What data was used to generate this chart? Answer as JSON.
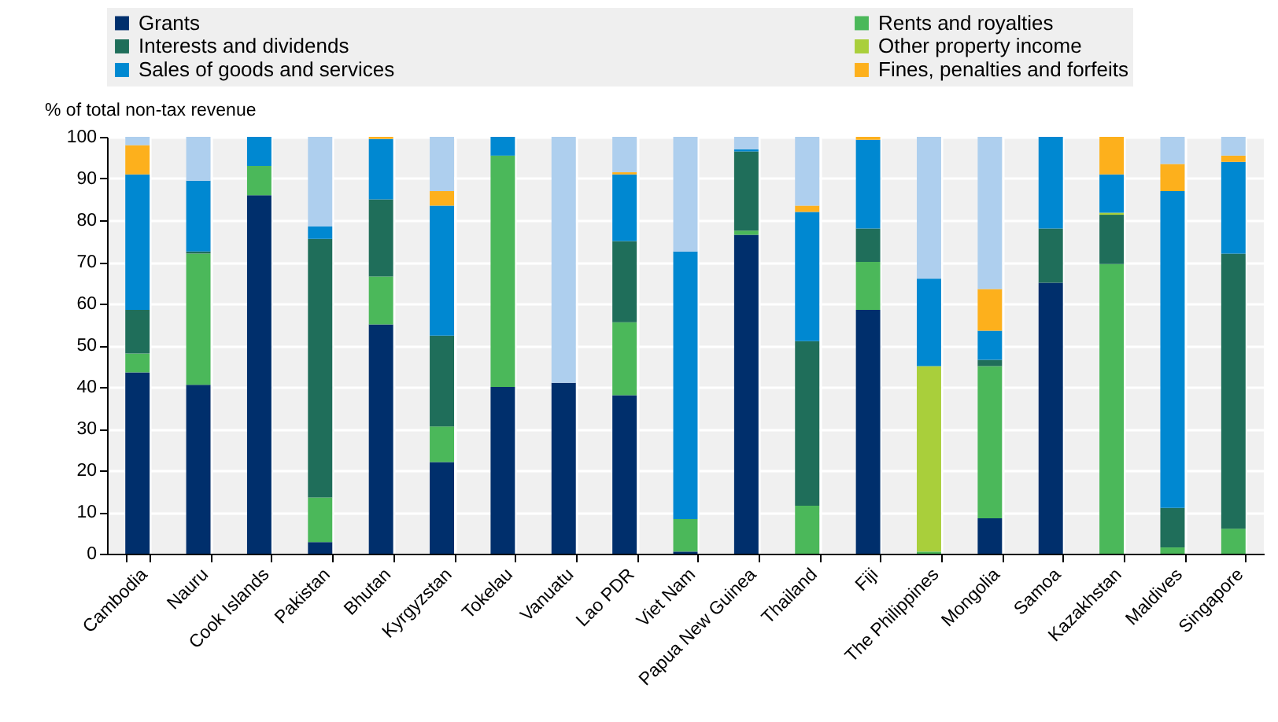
{
  "chart_data": {
    "type": "bar",
    "stacked": true,
    "ylabel": "% of total non-tax revenue",
    "categories": [
      "Cambodia",
      "Nauru",
      "Cook Islands",
      "Pakistan",
      "Bhutan",
      "Kyrgyzstan",
      "Tokelau",
      "Vanuatu",
      "Lao PDR",
      "Viet Nam",
      "Papua New Guinea",
      "Thailand",
      "Fiji",
      "The Philippines",
      "Mongolia",
      "Samoa",
      "Kazakhstan",
      "Maldives",
      "Singapore"
    ],
    "series": [
      {
        "name": "Grants",
        "color": "#002f6c",
        "values": [
          43.5,
          40.5,
          86,
          2.8,
          55,
          22,
          40,
          41,
          38,
          0.5,
          76.5,
          null,
          58.5,
          null,
          8.5,
          65,
          null,
          null,
          null
        ]
      },
      {
        "name": "Rents and royalties",
        "color": "#4bb85a",
        "values": [
          4.5,
          31.5,
          7,
          10.7,
          11.5,
          8.5,
          55.5,
          null,
          17.5,
          7.8,
          1,
          11.5,
          11.5,
          0.5,
          36.5,
          null,
          69.5,
          1.5,
          6
        ]
      },
      {
        "name": "Interests and dividends",
        "color": "#1f6e5a",
        "values": [
          10.5,
          0.5,
          null,
          62,
          18.5,
          21.8,
          null,
          null,
          19.5,
          null,
          19,
          39.5,
          8,
          null,
          1.5,
          13,
          11.8,
          9.5,
          66
        ]
      },
      {
        "name": "Other property income",
        "color": "#a9cf3b",
        "values": [
          null,
          null,
          null,
          null,
          null,
          null,
          null,
          null,
          null,
          null,
          null,
          null,
          null,
          44.5,
          null,
          null,
          0.5,
          null,
          null
        ]
      },
      {
        "name": "Sales of goods and services",
        "color": "#0088d1",
        "values": [
          32.5,
          17,
          7,
          3,
          14.5,
          31.2,
          4.5,
          null,
          16,
          64.2,
          0.5,
          31,
          21.3,
          21,
          7,
          22,
          9.2,
          76,
          22
        ]
      },
      {
        "name": "Fines, penalties and forfeits",
        "color": "#fdb01c",
        "values": [
          7,
          null,
          null,
          null,
          0.5,
          3.5,
          null,
          null,
          0.5,
          null,
          null,
          1.5,
          0.7,
          null,
          10,
          null,
          9,
          6.5,
          1.5
        ]
      },
      {
        "color": "#aecfee",
        "values": [
          2,
          10.5,
          null,
          21.5,
          null,
          13,
          null,
          59,
          8.5,
          27.5,
          3,
          16.5,
          null,
          34,
          36.5,
          null,
          null,
          6.5,
          4.5
        ]
      }
    ],
    "ylim": [
      0,
      100
    ],
    "yticks": [
      0,
      10,
      20,
      30,
      40,
      50,
      60,
      70,
      80,
      90,
      100
    ],
    "grid": true,
    "legend": "top"
  }
}
